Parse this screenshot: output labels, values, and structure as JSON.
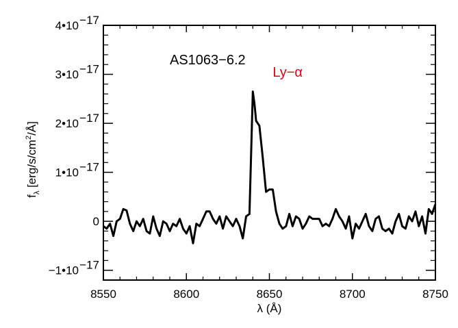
{
  "chart_data": {
    "type": "line",
    "title": "",
    "xlabel": "λ (Å)",
    "ylabel_main": "f",
    "ylabel_sub": "λ",
    "ylabel_rest": " [erg/s/cm",
    "ylabel_sup": "2",
    "ylabel_end": "/Å]",
    "xlim": [
      8550,
      8750
    ],
    "ylim": [
      -1.2e-17,
      4e-17
    ],
    "grid": false,
    "x_ticks": [
      8550,
      8600,
      8650,
      8700,
      8750
    ],
    "x_tick_labels": [
      "8550",
      "8600",
      "8650",
      "8700",
      "8750"
    ],
    "y_ticks": [
      {
        "value": 4e-17,
        "mant": "4•10",
        "exp": "−17"
      },
      {
        "value": 3e-17,
        "mant": "3•10",
        "exp": "−17"
      },
      {
        "value": 2e-17,
        "mant": "2•10",
        "exp": "−17"
      },
      {
        "value": 1e-17,
        "mant": "1•10",
        "exp": "−17"
      },
      {
        "value": 0,
        "mant": "0",
        "exp": ""
      },
      {
        "value": -1e-17,
        "mant": "−1•10",
        "exp": "−17"
      }
    ],
    "annotations": [
      {
        "text": "AS1063−6.2",
        "x": 8590,
        "y": 3.2e-17,
        "color": "#000000"
      },
      {
        "text": "Ly−α",
        "x": 8652,
        "y": 2.95e-17,
        "color": "#e3001b"
      }
    ],
    "series": [
      {
        "color": "#000000",
        "x": [
          8550,
          8552,
          8554,
          8556,
          8558,
          8560,
          8562,
          8564,
          8566,
          8568,
          8570,
          8572,
          8574,
          8576,
          8578,
          8580,
          8582,
          8584,
          8586,
          8588,
          8590,
          8592,
          8594,
          8596,
          8598,
          8600,
          8602,
          8604,
          8606,
          8608,
          8610,
          8612,
          8614,
          8616,
          8618,
          8620,
          8622,
          8624,
          8626,
          8628,
          8630,
          8632,
          8634,
          8636,
          8638,
          8640,
          8641,
          8642,
          8643,
          8644,
          8646,
          8648,
          8650,
          8652,
          8654,
          8656,
          8658,
          8660,
          8662,
          8664,
          8666,
          8668,
          8670,
          8672,
          8674,
          8676,
          8678,
          8680,
          8682,
          8684,
          8686,
          8688,
          8690,
          8692,
          8694,
          8696,
          8698,
          8700,
          8702,
          8704,
          8706,
          8708,
          8710,
          8712,
          8714,
          8716,
          8718,
          8720,
          8722,
          8724,
          8726,
          8728,
          8730,
          8732,
          8734,
          8736,
          8738,
          8740,
          8742,
          8744,
          8746,
          8748,
          8750
        ],
        "y": [
          -1e-18,
          -1.5e-18,
          -5e-19,
          -3e-18,
          0.0,
          5e-19,
          2.5e-18,
          2.2e-18,
          -5e-19,
          -2e-18,
          0.0,
          -1e-18,
          5e-19,
          -2e-18,
          -2.5e-18,
          1e-18,
          -1.5e-18,
          -3e-18,
          0.0,
          -5e-19,
          -2e-18,
          -5e-19,
          -1e-18,
          5e-19,
          -1.5e-18,
          -2.5e-18,
          -1e-18,
          -4.5e-18,
          -5e-19,
          -1e-18,
          5e-19,
          2e-18,
          2e-18,
          5e-19,
          -5e-19,
          1e-18,
          -1.5e-18,
          1e-18,
          0.0,
          -1e-18,
          5e-19,
          -1e-18,
          -3.5e-18,
          1e-18,
          1.5e-18,
          2.65e-17,
          2.4e-17,
          2.05e-17,
          2e-17,
          1.95e-17,
          1.3e-17,
          6e-18,
          6.5e-18,
          6.5e-18,
          2e-18,
          -5e-19,
          -1.5e-18,
          -1e-18,
          1.5e-18,
          -1e-18,
          1e-18,
          5e-19,
          -1.5e-18,
          -5e-19,
          1e-18,
          5e-19,
          5e-19,
          5e-19,
          -1e-18,
          -5e-19,
          -1e-18,
          5e-19,
          2.5e-18,
          1e-18,
          0.0,
          -1.5e-18,
          1e-18,
          -3.5e-18,
          -5e-19,
          -1.5e-18,
          0.0,
          1.5e-18,
          -1e-18,
          -2e-18,
          5e-19,
          1e-18,
          -1.5e-18,
          -2e-18,
          -1.5e-18,
          -2.5e-18,
          0.0,
          1.5e-18,
          -1e-18,
          -1.5e-18,
          1e-18,
          0.0,
          2e-18,
          -1e-18,
          1e-18,
          -2.5e-18,
          2.5e-18,
          1.5e-18,
          3.5e-18
        ]
      }
    ]
  }
}
